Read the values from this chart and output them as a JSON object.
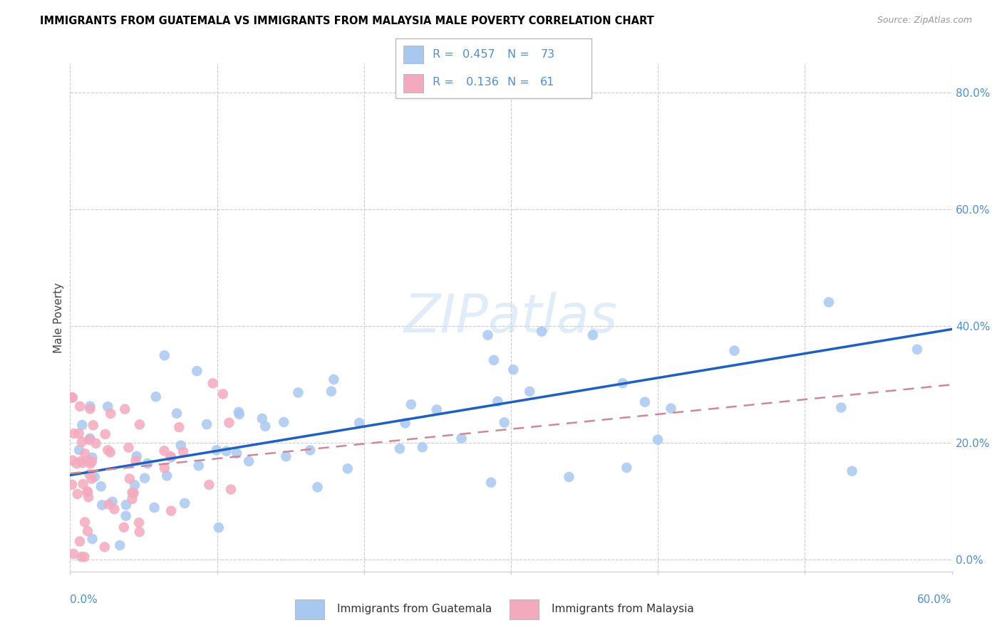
{
  "title": "IMMIGRANTS FROM GUATEMALA VS IMMIGRANTS FROM MALAYSIA MALE POVERTY CORRELATION CHART",
  "source": "Source: ZipAtlas.com",
  "ylabel": "Male Poverty",
  "xlim": [
    0.0,
    0.6
  ],
  "ylim": [
    -0.02,
    0.85
  ],
  "plot_ylim": [
    0.0,
    0.85
  ],
  "ytick_values": [
    0.0,
    0.2,
    0.4,
    0.6,
    0.8
  ],
  "xtick_values": [
    0.0,
    0.1,
    0.2,
    0.3,
    0.4,
    0.5,
    0.6
  ],
  "guatemala_color": "#A8C8F0",
  "malaysia_color": "#F4AABE",
  "guatemala_line_color": "#2060C0",
  "malaysia_line_color": "#D08898",
  "right_tick_color": "#5090D0",
  "legend_R_guatemala": "0.457",
  "legend_N_guatemala": "73",
  "legend_R_malaysia": "0.136",
  "legend_N_malaysia": "61",
  "guat_trend_x0": 0.0,
  "guat_trend_y0": 0.145,
  "guat_trend_x1": 0.6,
  "guat_trend_y1": 0.395,
  "malay_trend_x0": 0.0,
  "malay_trend_y0": 0.148,
  "malay_trend_x1": 0.6,
  "malay_trend_y1": 0.3
}
